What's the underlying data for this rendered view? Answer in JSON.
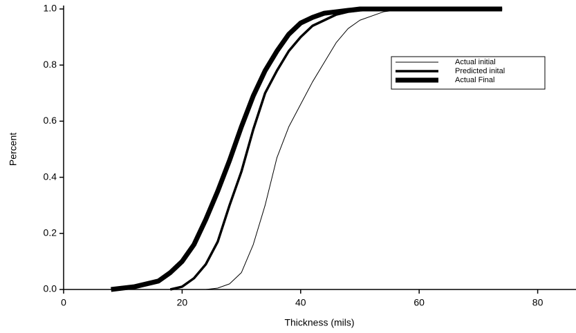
{
  "chart_data": {
    "type": "line",
    "x_label": "Thickness (mils)",
    "y_label": "Percent",
    "x": [
      8,
      12,
      16,
      18,
      20,
      22,
      24,
      26,
      28,
      30,
      32,
      34,
      36,
      38,
      40,
      42,
      44,
      46,
      48,
      50,
      54,
      58,
      62,
      66,
      70,
      74
    ],
    "series": [
      {
        "name": "Actual initial",
        "color": "#000000",
        "linewidth": 1,
        "values": [
          null,
          null,
          null,
          null,
          null,
          null,
          0,
          0.005,
          0.02,
          0.06,
          0.16,
          0.3,
          0.47,
          0.58,
          0.66,
          0.74,
          0.81,
          0.88,
          0.93,
          0.96,
          0.99,
          1.0,
          1.0,
          1.0,
          1.0,
          1.0
        ]
      },
      {
        "name": "Predicted inital",
        "color": "#000000",
        "linewidth": 3.5,
        "values": [
          null,
          null,
          null,
          0,
          0.01,
          0.04,
          0.09,
          0.17,
          0.3,
          0.42,
          0.57,
          0.7,
          0.78,
          0.85,
          0.9,
          0.94,
          0.96,
          0.98,
          0.99,
          0.995,
          1.0,
          1.0,
          1.0,
          1.0,
          1.0,
          1.0
        ]
      },
      {
        "name": "Actual Final",
        "color": "#000000",
        "linewidth": 7,
        "values": [
          0,
          0.01,
          0.03,
          0.06,
          0.1,
          0.16,
          0.25,
          0.35,
          0.46,
          0.58,
          0.69,
          0.78,
          0.85,
          0.91,
          0.95,
          0.97,
          0.985,
          0.99,
          0.995,
          1.0,
          1.0,
          1.0,
          1.0,
          1.0,
          1.0,
          1.0
        ]
      }
    ],
    "xlim": [
      0,
      86
    ],
    "xticks": [
      0,
      20,
      40,
      60,
      80
    ],
    "ylim": [
      0,
      1
    ],
    "yticks": [
      {
        "value": 0,
        "label": "0.0"
      },
      0.2,
      0.4,
      0.6,
      0.8,
      {
        "value": 1,
        "label": "1.0"
      }
    ],
    "legend": "upper right",
    "grid": false
  }
}
